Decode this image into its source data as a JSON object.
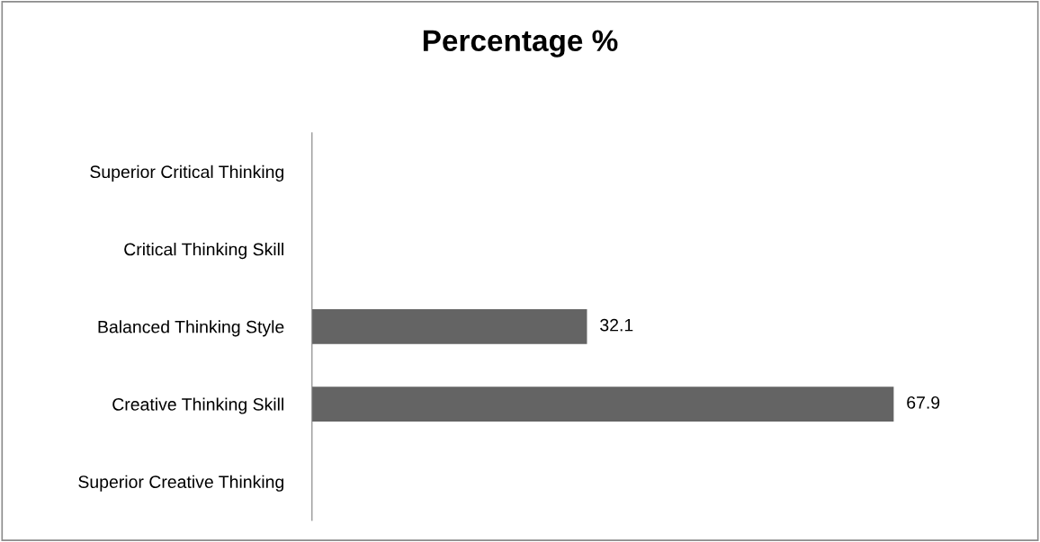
{
  "chart_data": {
    "type": "bar",
    "orientation": "horizontal",
    "title": "Percentage %",
    "categories": [
      "Superior Critical Thinking",
      "Critical Thinking Skill",
      "Balanced Thinking Style",
      "Creative Thinking Skill",
      "Superior Creative Thinking"
    ],
    "values": [
      0,
      0,
      32.1,
      67.9,
      0
    ],
    "value_labels": [
      null,
      null,
      "32.1",
      "67.9",
      null
    ],
    "color": "#646464",
    "grid": false,
    "legend": false,
    "tick_labels": "y"
  }
}
